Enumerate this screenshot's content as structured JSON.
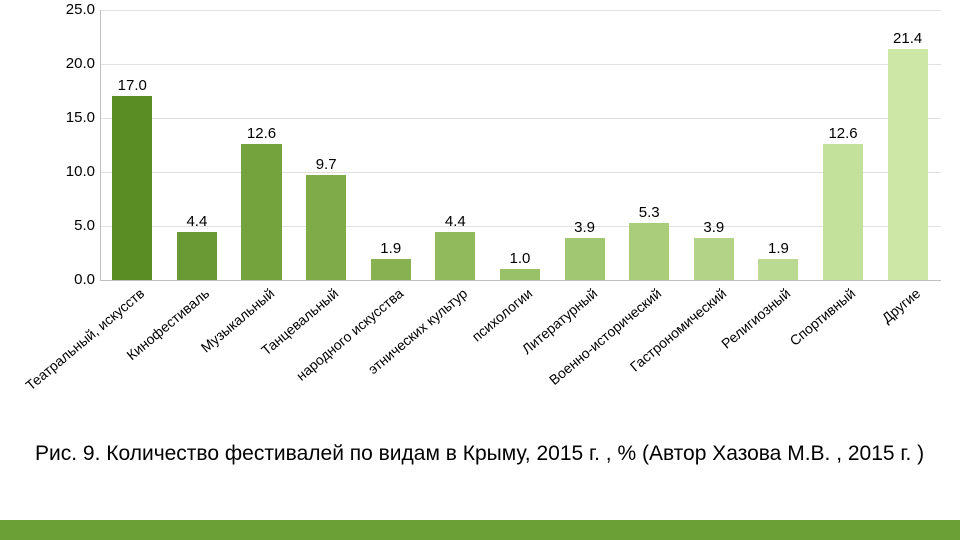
{
  "chart": {
    "type": "bar",
    "ylim": [
      0,
      25
    ],
    "ytick_step": 5,
    "yticks": [
      "0.0",
      "5.0",
      "10.0",
      "15.0",
      "20.0",
      "25.0"
    ],
    "grid_color": "#e0e0e0",
    "axis_color": "#bfbfbf",
    "background_color": "#ffffff",
    "label_fontsize": 15,
    "tick_fontsize": 14,
    "bar_width_ratio": 0.62,
    "categories": [
      "Театральный, искусств",
      "Кинофестиваль",
      "Музыкальный",
      "Танцевальный",
      "народного искусства",
      "этнических культур",
      "психологии",
      "Литературный",
      "Военно-исторический",
      "Гастрономический",
      "Религиозный",
      "Спортивный",
      "Другие"
    ],
    "values": [
      17.0,
      4.4,
      12.6,
      9.7,
      1.9,
      4.4,
      1.0,
      3.9,
      5.3,
      3.9,
      1.9,
      12.6,
      21.4
    ],
    "value_labels": [
      "17.0",
      "4.4",
      "12.6",
      "9.7",
      "1.9",
      "4.4",
      "1.0",
      "3.9",
      "5.3",
      "3.9",
      "1.9",
      "12.6",
      "21.4"
    ],
    "bar_colors": [
      "#5a8e25",
      "#6a9a33",
      "#74a33d",
      "#7fab48",
      "#88b252",
      "#91ba5d",
      "#99c167",
      "#a2c772",
      "#aacd7c",
      "#b3d487",
      "#bbda91",
      "#c4e19c",
      "#cde8a6"
    ]
  },
  "caption": "Рис. 9. Количество фестивалей по видам в Крыму, 2015 г. , % (Автор Хазова М.В. , 2015 г. )",
  "band_color": "#6aa035"
}
